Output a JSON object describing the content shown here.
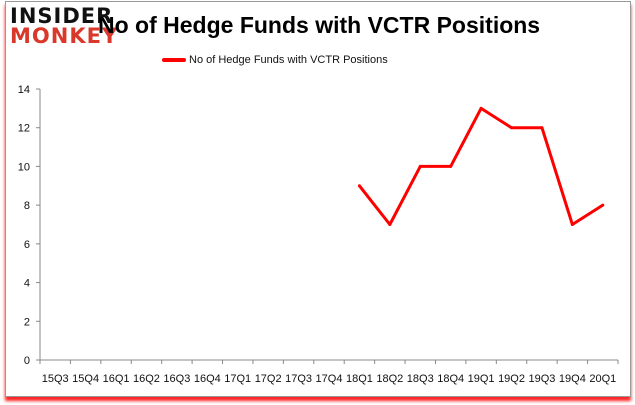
{
  "logo": {
    "line1": "INSIDER",
    "line2": "MONKEY"
  },
  "chart_data": {
    "type": "line",
    "title": "No of Hedge Funds with VCTR Positions",
    "categories": [
      "15Q3",
      "15Q4",
      "16Q1",
      "16Q2",
      "16Q3",
      "16Q4",
      "17Q1",
      "17Q2",
      "17Q3",
      "17Q4",
      "18Q1",
      "18Q2",
      "18Q3",
      "18Q4",
      "19Q1",
      "19Q2",
      "19Q3",
      "19Q4",
      "20Q1"
    ],
    "series": [
      {
        "name": "No of Hedge Funds with VCTR Positions",
        "color": "#ff0000",
        "values": [
          null,
          null,
          null,
          null,
          null,
          null,
          null,
          null,
          null,
          null,
          9,
          7,
          10,
          10,
          13,
          12,
          12,
          7,
          8
        ]
      }
    ],
    "ylim": [
      0,
      14
    ],
    "yticks": [
      0,
      2,
      4,
      6,
      8,
      10,
      12,
      14
    ],
    "grid": false,
    "legend": "top-center",
    "xlabel": "",
    "ylabel": ""
  }
}
